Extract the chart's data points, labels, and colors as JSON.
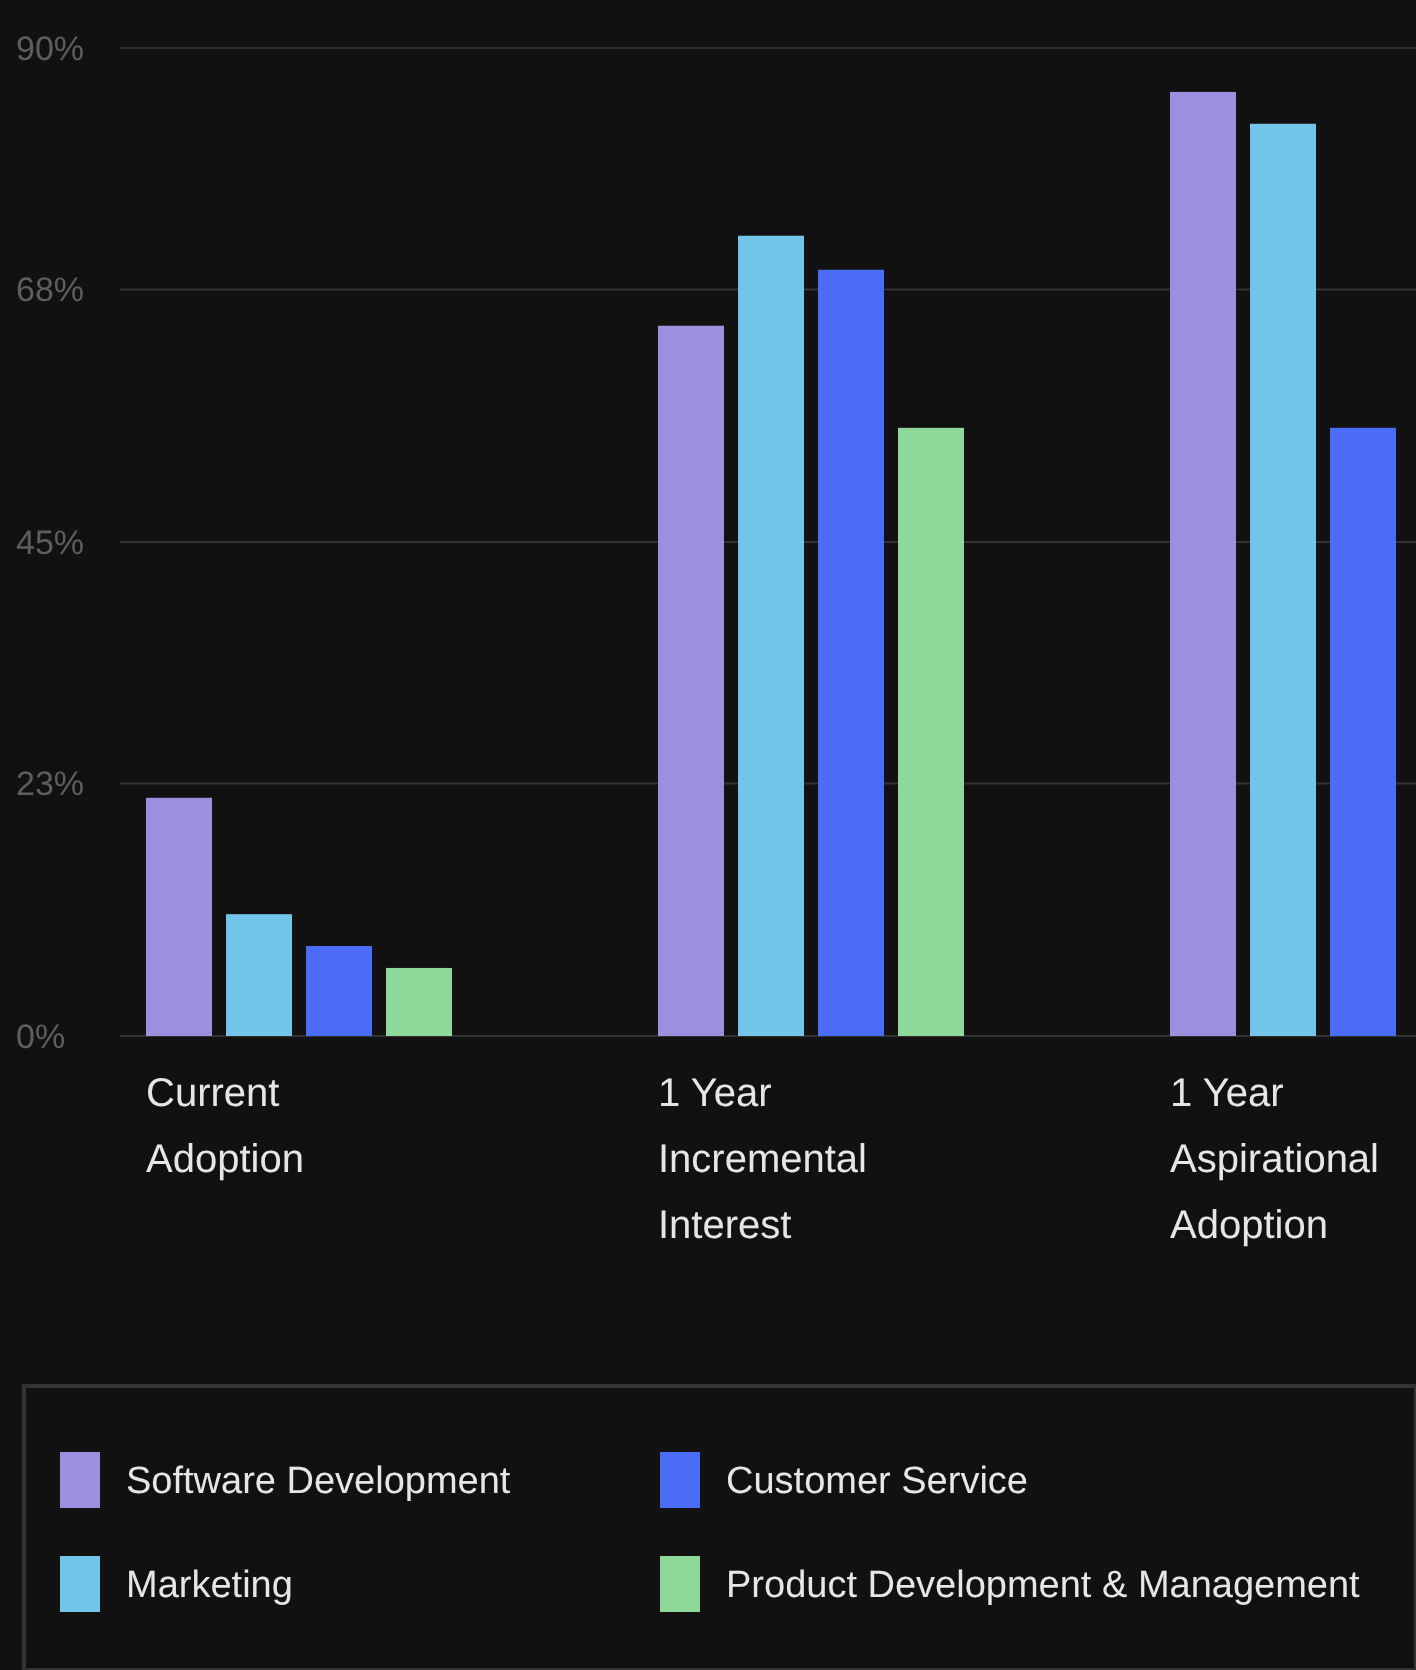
{
  "chart_data": {
    "type": "bar",
    "categories": [
      "Current Adoption",
      "1 Year Incremental Interest",
      "1 Year Aspirational Adoption"
    ],
    "series": [
      {
        "name": "Software Development",
        "color": "#9b8fe0",
        "values": [
          21.7,
          64.7,
          86
        ]
      },
      {
        "name": "Marketing",
        "color": "#72c4e8",
        "values": [
          11.1,
          72.9,
          83.1
        ]
      },
      {
        "name": "Customer Service",
        "color": "#4a6cf7",
        "values": [
          8.2,
          69.8,
          55.4
        ]
      },
      {
        "name": "Product Development & Management",
        "color": "#8ed99a",
        "values": [
          6.2,
          55.4,
          null
        ]
      }
    ],
    "ylim": [
      0,
      90
    ],
    "yticks": [
      {
        "value": 0,
        "label": "0%"
      },
      {
        "value": 23,
        "label": "23%"
      },
      {
        "value": 45,
        "label": "45%"
      },
      {
        "value": 68,
        "label": "68%"
      },
      {
        "value": 90,
        "label": "90%"
      }
    ],
    "grid": "y",
    "legend": "bottom"
  }
}
